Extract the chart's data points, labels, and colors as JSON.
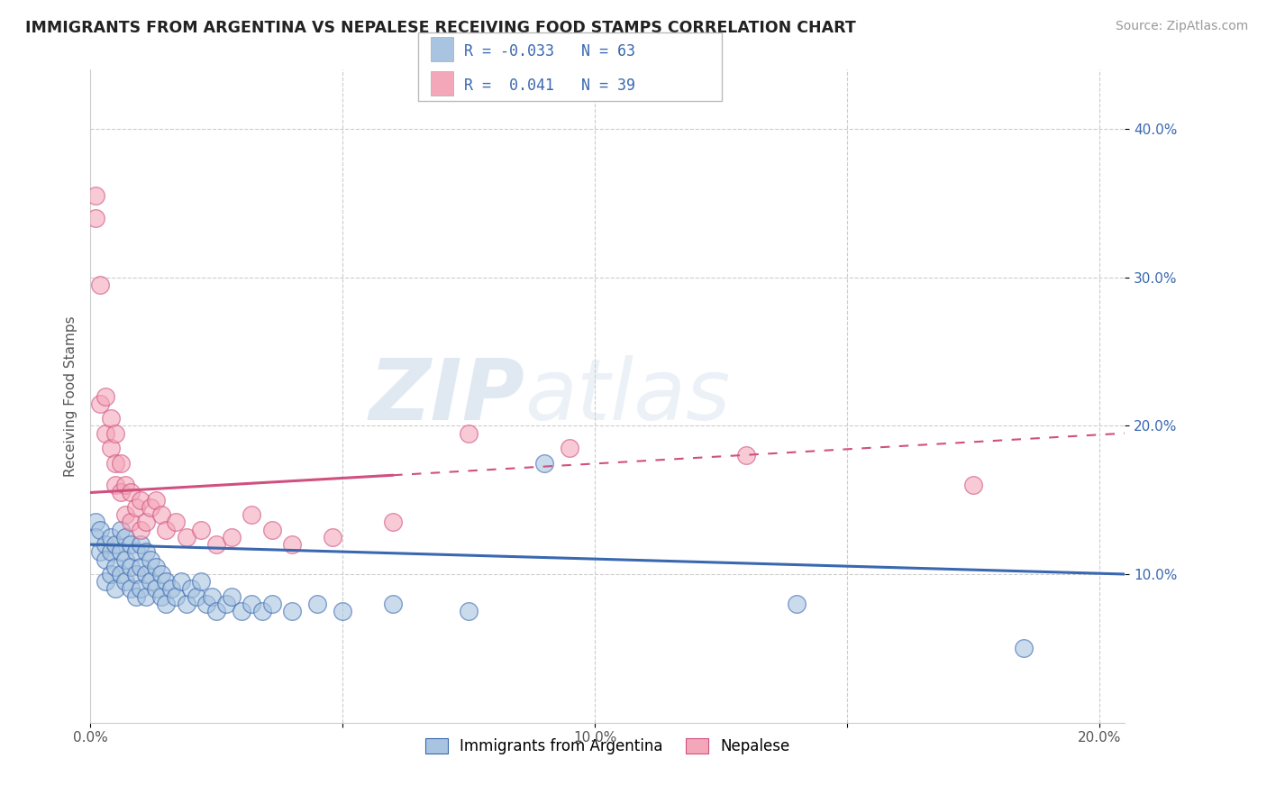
{
  "title": "IMMIGRANTS FROM ARGENTINA VS NEPALESE RECEIVING FOOD STAMPS CORRELATION CHART",
  "source": "Source: ZipAtlas.com",
  "ylabel": "Receiving Food Stamps",
  "xlim": [
    0.0,
    0.205
  ],
  "ylim": [
    0.0,
    0.44
  ],
  "xticks": [
    0.0,
    0.05,
    0.1,
    0.15,
    0.2
  ],
  "xtick_labels": [
    "0.0%",
    "",
    "10.0%",
    "",
    "20.0%"
  ],
  "yticks": [
    0.1,
    0.2,
    0.3,
    0.4
  ],
  "ytick_labels": [
    "10.0%",
    "20.0%",
    "30.0%",
    "40.0%"
  ],
  "legend_label1": "Immigrants from Argentina",
  "legend_label2": "Nepalese",
  "R1": -0.033,
  "N1": 63,
  "R2": 0.041,
  "N2": 39,
  "color1": "#a8c4e0",
  "color2": "#f4a7b9",
  "trendline1_color": "#3a68b0",
  "trendline2_color": "#d05080",
  "watermark_zip": "ZIP",
  "watermark_atlas": "atlas",
  "background_color": "#ffffff",
  "argentina_x": [
    0.001,
    0.001,
    0.002,
    0.002,
    0.003,
    0.003,
    0.003,
    0.004,
    0.004,
    0.004,
    0.005,
    0.005,
    0.005,
    0.006,
    0.006,
    0.006,
    0.007,
    0.007,
    0.007,
    0.008,
    0.008,
    0.008,
    0.009,
    0.009,
    0.009,
    0.01,
    0.01,
    0.01,
    0.011,
    0.011,
    0.011,
    0.012,
    0.012,
    0.013,
    0.013,
    0.014,
    0.014,
    0.015,
    0.015,
    0.016,
    0.017,
    0.018,
    0.019,
    0.02,
    0.021,
    0.022,
    0.023,
    0.024,
    0.025,
    0.027,
    0.028,
    0.03,
    0.032,
    0.034,
    0.036,
    0.04,
    0.045,
    0.05,
    0.06,
    0.075,
    0.09,
    0.14,
    0.185
  ],
  "argentina_y": [
    0.135,
    0.125,
    0.13,
    0.115,
    0.12,
    0.11,
    0.095,
    0.125,
    0.115,
    0.1,
    0.12,
    0.105,
    0.09,
    0.13,
    0.115,
    0.1,
    0.125,
    0.11,
    0.095,
    0.12,
    0.105,
    0.09,
    0.115,
    0.1,
    0.085,
    0.12,
    0.105,
    0.09,
    0.115,
    0.1,
    0.085,
    0.11,
    0.095,
    0.105,
    0.09,
    0.1,
    0.085,
    0.095,
    0.08,
    0.09,
    0.085,
    0.095,
    0.08,
    0.09,
    0.085,
    0.095,
    0.08,
    0.085,
    0.075,
    0.08,
    0.085,
    0.075,
    0.08,
    0.075,
    0.08,
    0.075,
    0.08,
    0.075,
    0.08,
    0.075,
    0.175,
    0.08,
    0.05
  ],
  "nepalese_x": [
    0.001,
    0.001,
    0.002,
    0.002,
    0.003,
    0.003,
    0.004,
    0.004,
    0.005,
    0.005,
    0.005,
    0.006,
    0.006,
    0.007,
    0.007,
    0.008,
    0.008,
    0.009,
    0.01,
    0.01,
    0.011,
    0.012,
    0.013,
    0.014,
    0.015,
    0.017,
    0.019,
    0.022,
    0.025,
    0.028,
    0.032,
    0.036,
    0.04,
    0.048,
    0.06,
    0.075,
    0.095,
    0.13,
    0.175
  ],
  "nepalese_y": [
    0.355,
    0.34,
    0.295,
    0.215,
    0.22,
    0.195,
    0.205,
    0.185,
    0.195,
    0.175,
    0.16,
    0.175,
    0.155,
    0.16,
    0.14,
    0.155,
    0.135,
    0.145,
    0.15,
    0.13,
    0.135,
    0.145,
    0.15,
    0.14,
    0.13,
    0.135,
    0.125,
    0.13,
    0.12,
    0.125,
    0.14,
    0.13,
    0.12,
    0.125,
    0.135,
    0.195,
    0.185,
    0.18,
    0.16
  ],
  "trendline1_x0": 0.0,
  "trendline1_x1": 0.205,
  "trendline1_y0": 0.12,
  "trendline1_y1": 0.1,
  "trendline2_x0": 0.0,
  "trendline2_x1": 0.205,
  "trendline2_y0": 0.155,
  "trendline2_y1": 0.195
}
